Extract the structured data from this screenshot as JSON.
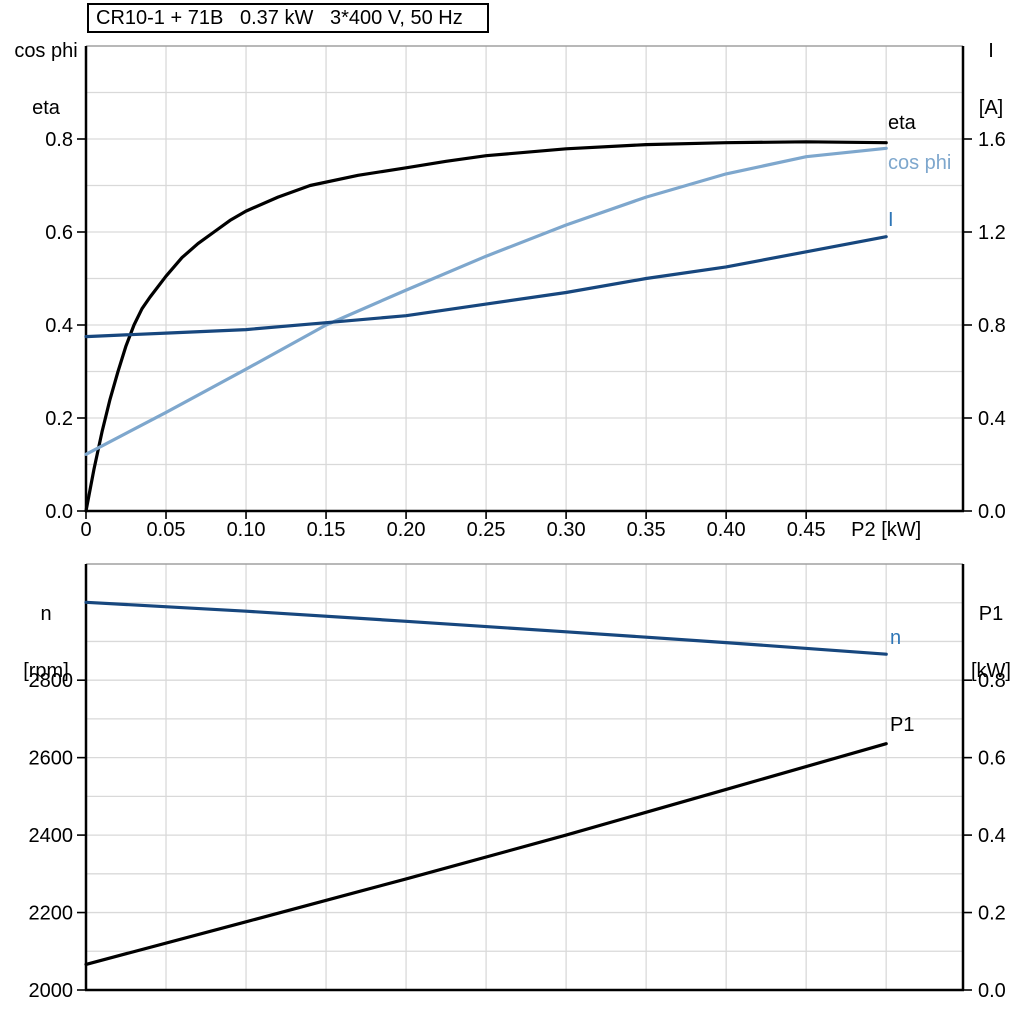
{
  "title_box": {
    "text": "CR10-1 + 71B   0.37 kW   3*400 V, 50 Hz"
  },
  "axis_corner_labels": {
    "top_left": [
      "cos phi",
      "eta"
    ],
    "top_right": [
      "I",
      "[A]"
    ],
    "bottom_left": [
      "n",
      "[rpm]"
    ],
    "bottom_right": [
      "P1",
      "[kW]"
    ]
  },
  "colors": {
    "black": "#000000",
    "dark_blue": "#17477e",
    "light_blue": "#7ea7cd",
    "label_blue": "#2e75b6",
    "grid": "#d9d9d9",
    "frame": "#a0a0a0",
    "axis": "#000000",
    "background": "#ffffff"
  },
  "chart_data": [
    {
      "name": "top",
      "type": "line",
      "title": "CR10-1 + 71B   0.37 kW   3*400 V, 50 Hz",
      "xlabel": "P2 [kW]",
      "xlabel_at": 0.5,
      "ylabel_left": "cos phi / eta",
      "ylabel_right": "I [A]",
      "xlim": [
        0,
        0.548
      ],
      "ylim_left": [
        0,
        1.0
      ],
      "ylim_right": [
        0,
        2.0
      ],
      "grid": true,
      "xgrid": [
        0.05,
        0.1,
        0.15,
        0.2,
        0.25,
        0.3,
        0.35,
        0.4,
        0.45,
        0.5
      ],
      "ygrid": [
        0.1,
        0.2,
        0.3,
        0.4,
        0.5,
        0.6,
        0.7,
        0.8,
        0.9
      ],
      "xticks": {
        "values": [
          0,
          0.05,
          0.1,
          0.15,
          0.2,
          0.25,
          0.3,
          0.35,
          0.4,
          0.45
        ],
        "labels": [
          "0",
          "0.05",
          "0.10",
          "0.15",
          "0.20",
          "0.25",
          "0.30",
          "0.35",
          "0.40",
          "0.45"
        ]
      },
      "yticks_left": {
        "values": [
          0,
          0.2,
          0.4,
          0.6,
          0.8
        ],
        "labels": [
          "0.0",
          "0.2",
          "0.4",
          "0.6",
          "0.8"
        ]
      },
      "yticks_right": {
        "values": [
          0,
          0.4,
          0.8,
          1.2,
          1.6
        ],
        "labels": [
          "0.0",
          "0.4",
          "0.8",
          "1.2",
          "1.6"
        ]
      },
      "series": [
        {
          "name": "eta",
          "axis": "left",
          "color": "#000000",
          "label_color": "#000000",
          "x": [
            0,
            0.005,
            0.01,
            0.015,
            0.02,
            0.025,
            0.03,
            0.035,
            0.04,
            0.05,
            0.06,
            0.07,
            0.08,
            0.09,
            0.1,
            0.12,
            0.14,
            0.17,
            0.2,
            0.225,
            0.25,
            0.3,
            0.35,
            0.4,
            0.45,
            0.5
          ],
          "y": [
            0,
            0.09,
            0.17,
            0.24,
            0.3,
            0.355,
            0.4,
            0.435,
            0.46,
            0.505,
            0.545,
            0.575,
            0.6,
            0.625,
            0.645,
            0.675,
            0.7,
            0.722,
            0.738,
            0.752,
            0.764,
            0.779,
            0.788,
            0.792,
            0.794,
            0.792
          ]
        },
        {
          "name": "cos phi",
          "axis": "left",
          "color": "#7ea7cd",
          "label_color": "#7ea7cd",
          "x": [
            0,
            0.05,
            0.1,
            0.15,
            0.2,
            0.25,
            0.3,
            0.35,
            0.4,
            0.45,
            0.5
          ],
          "y": [
            0.122,
            0.212,
            0.305,
            0.4,
            0.475,
            0.548,
            0.615,
            0.675,
            0.725,
            0.762,
            0.78
          ]
        },
        {
          "name": "I",
          "axis": "right",
          "color": "#17477e",
          "label_color": "#2e75b6",
          "x": [
            0,
            0.05,
            0.1,
            0.15,
            0.2,
            0.25,
            0.3,
            0.35,
            0.4,
            0.45,
            0.5
          ],
          "y": [
            0.75,
            0.765,
            0.78,
            0.81,
            0.84,
            0.89,
            0.94,
            1.0,
            1.05,
            1.115,
            1.18
          ]
        }
      ]
    },
    {
      "name": "bottom",
      "type": "line",
      "xlabel": "",
      "ylabel_left": "n [rpm]",
      "ylabel_right": "P1 [kW]",
      "xlim": [
        0,
        0.548
      ],
      "ylim_left": [
        2000,
        3100
      ],
      "ylim_right": [
        0,
        1.1
      ],
      "grid": true,
      "xgrid": [
        0.05,
        0.1,
        0.15,
        0.2,
        0.25,
        0.3,
        0.35,
        0.4,
        0.45,
        0.5
      ],
      "ygrid": [
        2100,
        2200,
        2300,
        2400,
        2500,
        2600,
        2700,
        2800,
        2900,
        3000
      ],
      "yticks_left": {
        "values": [
          2000,
          2200,
          2400,
          2600,
          2800
        ],
        "labels": [
          "2000",
          "2200",
          "2400",
          "2600",
          "2800"
        ]
      },
      "yticks_right": {
        "values": [
          0,
          0.2,
          0.4,
          0.6,
          0.8
        ],
        "labels": [
          "0.0",
          "0.2",
          "0.4",
          "0.6",
          "0.8"
        ]
      },
      "series": [
        {
          "name": "n",
          "axis": "left",
          "color": "#17477e",
          "label_color": "#2e75b6",
          "x": [
            0,
            0.1,
            0.2,
            0.3,
            0.4,
            0.5
          ],
          "y": [
            3001,
            2978,
            2952,
            2925,
            2897,
            2867
          ]
        },
        {
          "name": "P1",
          "axis": "right",
          "color": "#000000",
          "label_color": "#000000",
          "x": [
            0,
            0.1,
            0.2,
            0.3,
            0.4,
            0.5
          ],
          "y": [
            0.066,
            0.176,
            0.287,
            0.4,
            0.518,
            0.636
          ]
        }
      ]
    }
  ]
}
